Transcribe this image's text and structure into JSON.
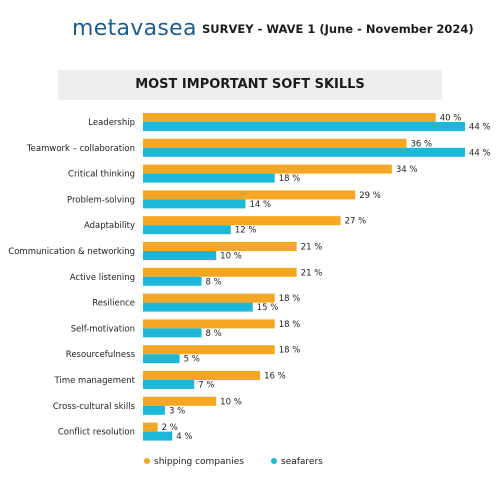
{
  "header": {
    "logo_text": "metavasea",
    "subtitle": "SURVEY - WAVE 1 (June - November 2024)"
  },
  "colors": {
    "shipping_companies": "#f5a623",
    "seafarers": "#1db8d9",
    "title_band": "#eeeeee",
    "logo": "#1f5c8a"
  },
  "chart_data": {
    "type": "bar",
    "orientation": "horizontal",
    "title": "MOST IMPORTANT SOFT SKILLS",
    "value_suffix": " %",
    "xlim": [
      0,
      44
    ],
    "grid": false,
    "legend_position": "bottom",
    "categories": [
      "Leadership",
      "Teamwork – collaboration",
      "Critical thinking",
      "Problem-solving",
      "Adaptability",
      "Communication & networking",
      "Active listening",
      "Resilience",
      "Self-motivation",
      "Resourcefulness",
      "Time management",
      "Cross-cultural skills",
      "Conflict resolution"
    ],
    "series": [
      {
        "name": "shipping companies",
        "color": "#f5a623",
        "values": [
          40,
          36,
          34,
          29,
          27,
          21,
          21,
          18,
          18,
          18,
          16,
          10,
          2
        ]
      },
      {
        "name": "seafarers",
        "color": "#1db8d9",
        "values": [
          44,
          44,
          18,
          14,
          12,
          10,
          8,
          15,
          8,
          5,
          7,
          3,
          4
        ]
      }
    ]
  }
}
